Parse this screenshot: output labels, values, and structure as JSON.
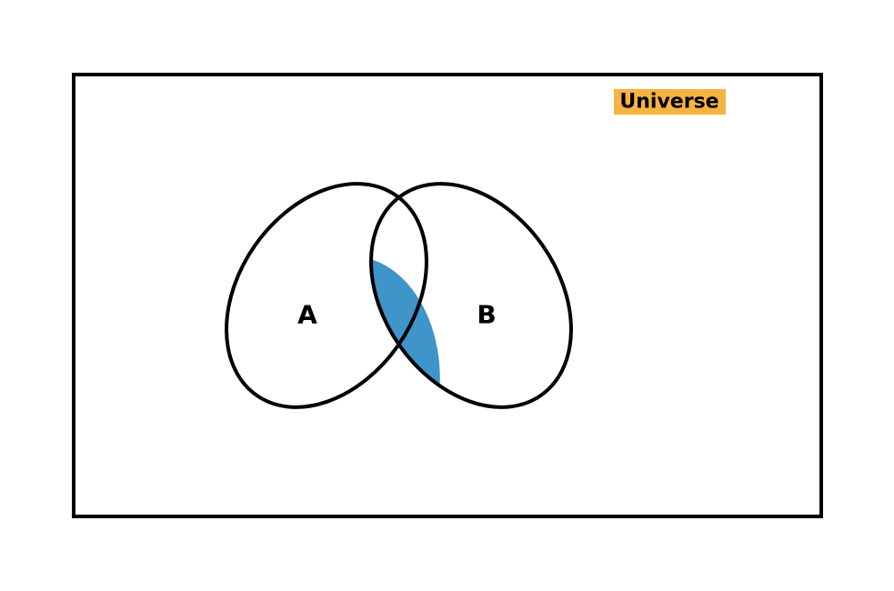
{
  "universe": {
    "label": "Universe",
    "label_bg_color": "#f5b342"
  },
  "sets": [
    {
      "label": "A"
    },
    {
      "label": "B"
    }
  ],
  "colors": {
    "intersection_fill": "#3f94c9",
    "outline": "#000000",
    "background": "#ffffff"
  }
}
